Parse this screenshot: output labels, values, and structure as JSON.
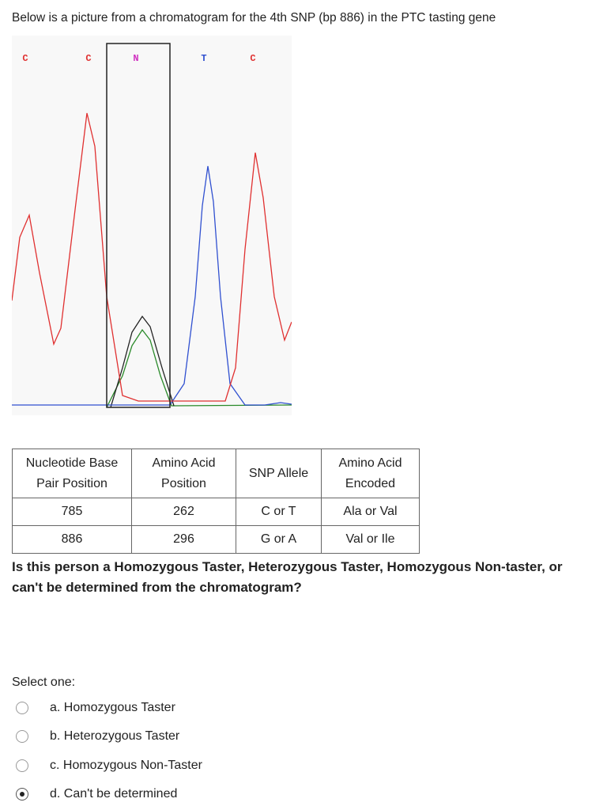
{
  "question_intro": "Below is a picture from a chromatogram for the 4th SNP (bp 886) in the PTC tasting gene",
  "chromatogram": {
    "bases": [
      "C",
      "C",
      "N",
      "T",
      "C"
    ]
  },
  "table": {
    "header": [
      "Nucleotide Base Pair Position",
      "Amino Acid Position",
      "SNP Allele",
      "Amino Acid Encoded"
    ],
    "rows": [
      [
        785,
        262,
        "C or T",
        "Ala or Val"
      ],
      [
        886,
        296,
        "G or A",
        "Val or Ile"
      ]
    ]
  },
  "question": "Is this person a Homozygous Taster, Heterozygous Taster, Homozygous Non-taster, or can't be determined from the chromatogram?",
  "select_label": "Select one:",
  "options": [
    {
      "label": "a. Homozygous Taster",
      "selected": false
    },
    {
      "label": "b. Heterozygous Taster",
      "selected": false
    },
    {
      "label": "c. Homozygous Non-Taster",
      "selected": false
    },
    {
      "label": "d. Can't be determined",
      "selected": true
    }
  ]
}
